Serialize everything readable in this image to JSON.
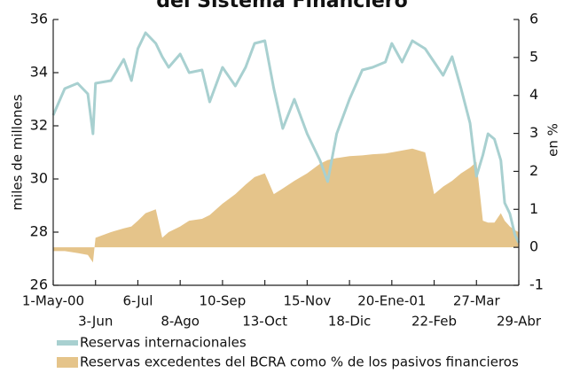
{
  "chart_data": {
    "type": "line-area",
    "title": "del Sistema Financiero",
    "y_label": "miles de millones",
    "y2_label": "en %",
    "x": [
      "2000-05-01",
      "2000-05-10",
      "2000-05-20",
      "2000-05-28",
      "2000-06-01",
      "2000-06-03",
      "2000-06-15",
      "2000-06-25",
      "2000-07-01",
      "2000-07-06",
      "2000-07-12",
      "2000-07-20",
      "2000-07-25",
      "2000-07-30",
      "2000-08-08",
      "2000-08-15",
      "2000-08-25",
      "2000-08-31",
      "2000-09-10",
      "2000-09-20",
      "2000-09-28",
      "2000-10-05",
      "2000-10-13",
      "2000-10-20",
      "2000-10-27",
      "2000-11-05",
      "2000-11-15",
      "2000-11-25",
      "2000-12-01",
      "2000-12-08",
      "2000-12-18",
      "2000-12-28",
      "2001-01-05",
      "2001-01-15",
      "2001-01-20",
      "2001-01-28",
      "2001-02-05",
      "2001-02-15",
      "2001-02-22",
      "2001-03-01",
      "2001-03-08",
      "2001-03-15",
      "2001-03-22",
      "2001-03-27",
      "2001-04-01",
      "2001-04-05",
      "2001-04-10",
      "2001-04-15",
      "2001-04-18",
      "2001-04-22",
      "2001-04-26",
      "2001-04-29"
    ],
    "xlim": [
      "2000-05-01",
      "2001-04-29"
    ],
    "xticks": [
      {
        "value": "2000-05-01",
        "label": "1-May-00"
      },
      {
        "value": "2000-06-03",
        "label": "3-Jun"
      },
      {
        "value": "2000-07-06",
        "label": "6-Jul"
      },
      {
        "value": "2000-08-08",
        "label": "8-Ago"
      },
      {
        "value": "2000-09-10",
        "label": "10-Sep"
      },
      {
        "value": "2000-10-13",
        "label": "13-Oct"
      },
      {
        "value": "2000-11-15",
        "label": "15-Nov"
      },
      {
        "value": "2000-12-18",
        "label": "18-Dic"
      },
      {
        "value": "2001-01-20",
        "label": "20-Ene-01"
      },
      {
        "value": "2001-02-22",
        "label": "22-Feb"
      },
      {
        "value": "2001-03-27",
        "label": "27-Mar"
      },
      {
        "value": "2001-04-29",
        "label": "29-Abr"
      }
    ],
    "ylim": [
      26,
      36
    ],
    "yticks": [
      26,
      28,
      30,
      32,
      34,
      36
    ],
    "y2lim": [
      -1,
      6
    ],
    "y2ticks": [
      -1,
      0,
      1,
      2,
      3,
      4,
      5,
      6
    ],
    "series": [
      {
        "name": "Reservas internacionales",
        "type": "line",
        "color": "#a8d0d0",
        "values": [
          32.4,
          33.4,
          33.6,
          33.2,
          31.7,
          33.6,
          33.7,
          34.5,
          33.7,
          34.9,
          35.5,
          35.1,
          34.6,
          34.2,
          34.7,
          34.0,
          34.1,
          32.9,
          34.2,
          33.5,
          34.2,
          35.1,
          35.2,
          33.4,
          31.9,
          33.0,
          31.7,
          30.7,
          29.9,
          31.7,
          33.0,
          34.1,
          34.2,
          34.4,
          35.1,
          34.4,
          35.2,
          34.9,
          34.4,
          33.9,
          34.6,
          33.4,
          32.1,
          30.1,
          30.9,
          31.7,
          31.5,
          30.7,
          29.1,
          28.7,
          27.9,
          27.6
        ]
      },
      {
        "name": "Reservas excedentes del BCRA como % de los pasivos financieros",
        "type": "area",
        "axis": "y2",
        "color": "#e5c48a",
        "values": [
          -0.1,
          -0.1,
          -0.15,
          -0.2,
          -0.4,
          0.25,
          0.4,
          0.5,
          0.55,
          0.7,
          0.9,
          1.0,
          0.25,
          0.4,
          0.55,
          0.7,
          0.75,
          0.85,
          1.15,
          1.4,
          1.65,
          1.85,
          1.95,
          1.4,
          1.55,
          1.75,
          1.95,
          2.2,
          2.3,
          2.35,
          2.4,
          2.42,
          2.45,
          2.47,
          2.5,
          2.55,
          2.6,
          2.5,
          1.4,
          1.6,
          1.75,
          1.95,
          2.1,
          2.25,
          0.7,
          0.65,
          0.65,
          0.9,
          0.7,
          0.55,
          0.45,
          0.4
        ]
      }
    ]
  }
}
